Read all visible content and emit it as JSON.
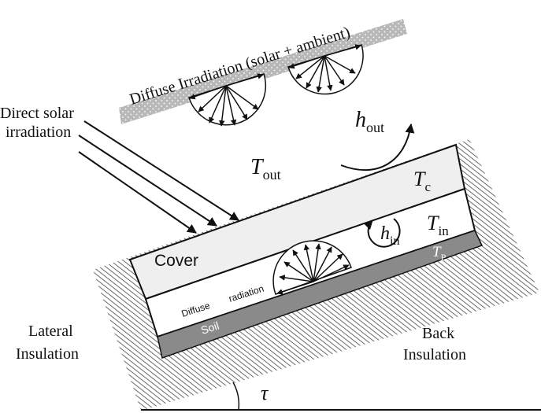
{
  "labels": {
    "diffuse_irradiation": "Diffuse Irradiation (solar + ambient)",
    "direct_solar_line1": "Direct solar",
    "direct_solar_line2": "irradiation",
    "h_out_base": "h",
    "h_out_sub": "out",
    "T_out_base": "T",
    "T_out_sub": "out",
    "T_c_base": "T",
    "T_c_sub": "c",
    "T_in_base": "T",
    "T_in_sub": "in",
    "h_in_base": "h",
    "h_in_sub": "in",
    "T_p_base": "T",
    "T_p_sub": "P",
    "cover": "Cover",
    "diffuse_radiation_1": "Diffuse",
    "diffuse_radiation_2": "radiation",
    "soil": "Soil",
    "lateral_insulation_line1": "Lateral",
    "lateral_insulation_line2": "Insulation",
    "back_insulation_line1": "Back",
    "back_insulation_line2": "Insulation",
    "tilt_angle": "τ"
  },
  "colors": {
    "cover_fill": "#efefef",
    "plate_fill": "#8a8a8a",
    "insulation_hatch": "#444444",
    "sky_band": "#b8b8b8",
    "stroke": "#111111"
  }
}
